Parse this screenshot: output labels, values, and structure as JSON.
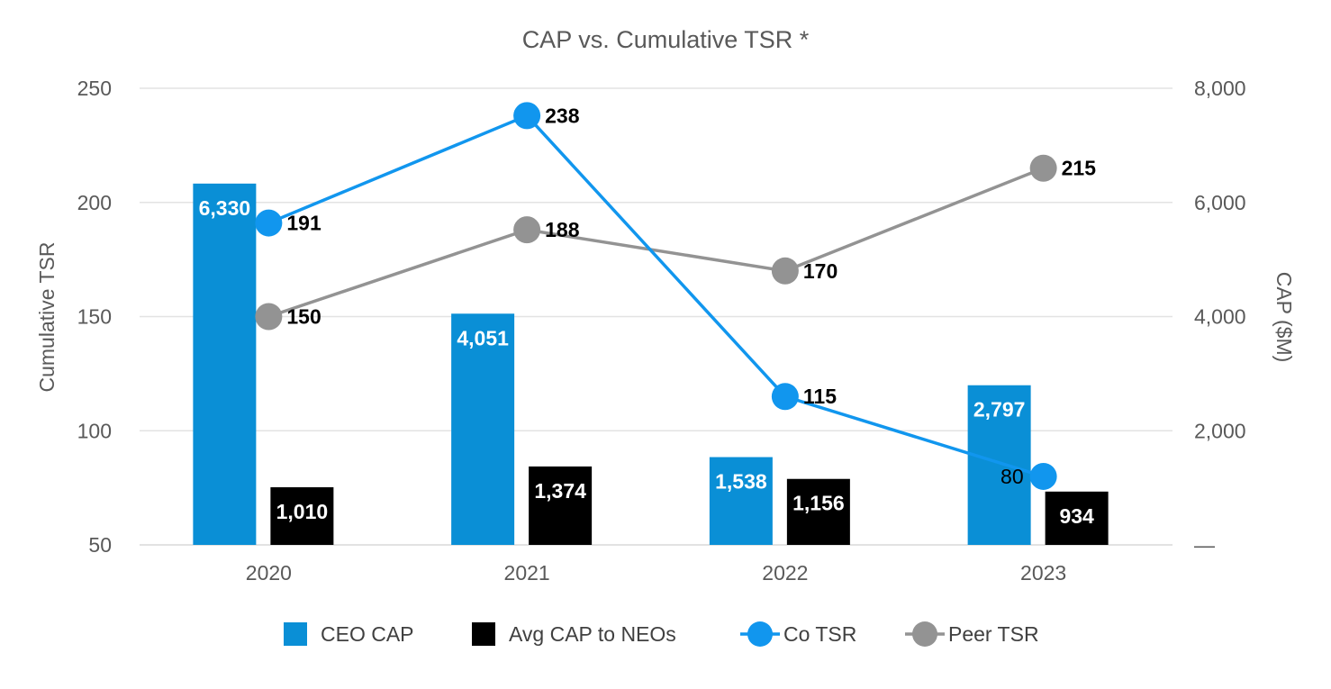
{
  "chart_data": {
    "type": "bar",
    "title": "CAP vs. Cumulative TSR *",
    "ylabel_left": "Cumulative TSR",
    "ylabel_right": "CAP ($M)",
    "left_ylim": [
      50,
      250
    ],
    "left_ticks": [
      "250",
      "200",
      "150",
      "100",
      "50"
    ],
    "left_tick_values": [
      250,
      200,
      150,
      100,
      50
    ],
    "right_ylim": [
      0,
      8000
    ],
    "right_ticks": [
      "8,000",
      "6,000",
      "4,000",
      "2,000",
      "—"
    ],
    "right_tick_values": [
      8000,
      6000,
      4000,
      2000,
      0
    ],
    "categories": [
      "2020",
      "2021",
      "2022",
      "2023"
    ],
    "grid": true,
    "legend_position": "bottom",
    "series": [
      {
        "name": "CEO CAP",
        "type": "bar",
        "axis": "right",
        "color": "#0a8fd6",
        "values": [
          6330,
          4051,
          1538,
          2797
        ],
        "labels": [
          "6,330",
          "4,051",
          "1,538",
          "2,797"
        ]
      },
      {
        "name": "Avg CAP to NEOs",
        "type": "bar",
        "axis": "right",
        "color": "#000000",
        "values": [
          1010,
          1374,
          1156,
          934
        ],
        "labels": [
          "1,010",
          "1,374",
          "1,156",
          "934"
        ]
      },
      {
        "name": "Co TSR",
        "type": "line",
        "axis": "left",
        "color": "#1196ee",
        "values": [
          191,
          238,
          115,
          80
        ],
        "labels": [
          "191",
          "238",
          "115",
          "80"
        ]
      },
      {
        "name": "Peer TSR",
        "type": "line",
        "axis": "left",
        "color": "#939393",
        "values": [
          150,
          188,
          170,
          215
        ],
        "labels": [
          "150",
          "188",
          "170",
          "215"
        ]
      }
    ]
  }
}
